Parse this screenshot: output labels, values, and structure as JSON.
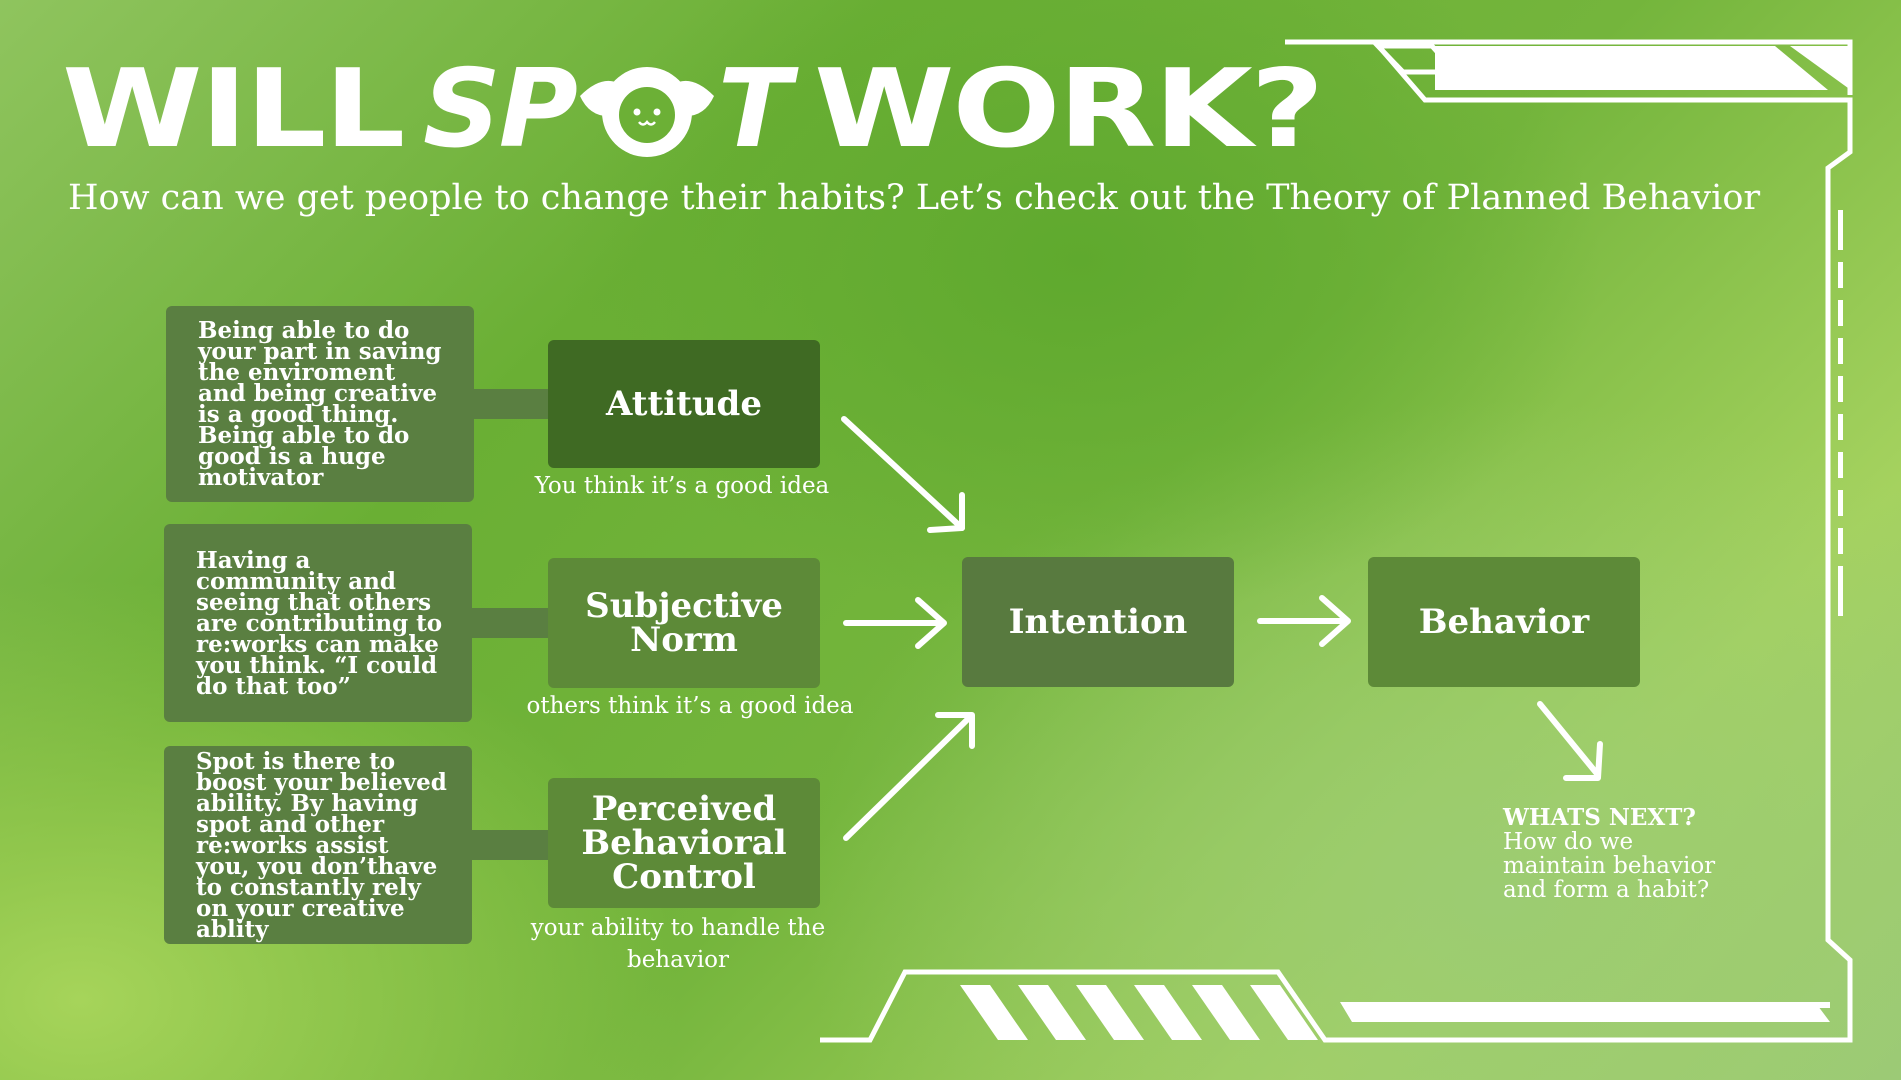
{
  "header": {
    "title_will": "WILL",
    "title_spot_left": "SP",
    "title_spot_right": "T",
    "title_work": "WORK?",
    "subtitle": "How can we get people to change their habits? Let’s check out the Theory of Planned Behavior"
  },
  "diagram": {
    "rows": [
      {
        "description": "Being able to do your part in saving the enviroment and being creative is a good thing. Being able to do good is a huge motivator",
        "factor": "Attitude",
        "caption": "You think it’s a good idea"
      },
      {
        "description": "Having a community and seeing that others are contributing to re:works can make you think. “I could do that too”",
        "factor": "Subjective Norm",
        "caption": "others think it’s a good idea"
      },
      {
        "description": "Spot is there to boost your believed ability. By having spot and other re:works assist you, you don’thave to constantly rely on your creative ablity",
        "factor": "Perceived Behavioral Control",
        "caption": "your ability to handle the behavior"
      }
    ],
    "intention": "Intention",
    "behavior": "Behavior",
    "next": {
      "heading": "WHATS NEXT?",
      "body": "How do we maintain behavior and form a habit?"
    }
  },
  "colors": {
    "dark_box": "#5a7f41",
    "attitude_box": "#3f6a23",
    "node_box": "#5d8a38",
    "text": "#ffffff"
  }
}
